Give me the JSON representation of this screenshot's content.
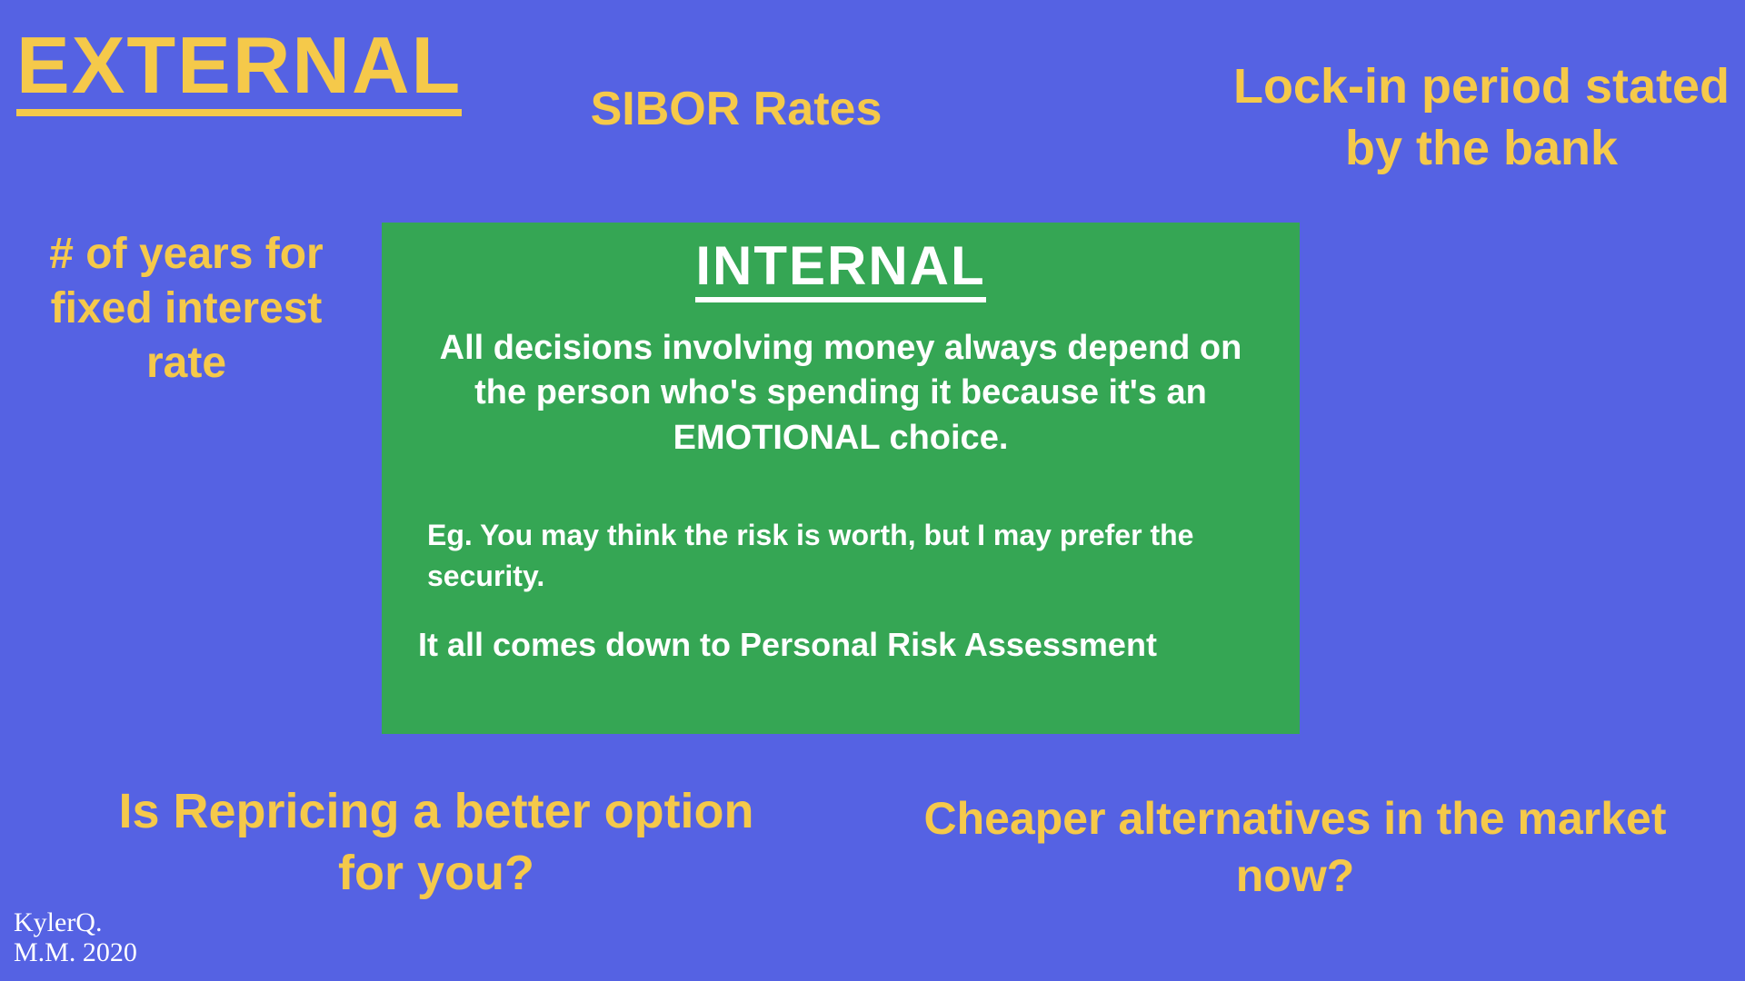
{
  "colors": {
    "background": "#5562e3",
    "accent": "#f5c94a",
    "box_bg": "#35a654",
    "box_text": "#ffffff",
    "signature": "#ffffff"
  },
  "external": {
    "title": "EXTERNAL",
    "title_fontsize": 88,
    "factors": {
      "sibor": "SIBOR Rates",
      "lockin": "Lock-in period stated by the bank",
      "years": "# of years for fixed interest rate",
      "repricing": "Is Repricing a better option for you?",
      "cheaper": "Cheaper alternatives in the market now?"
    }
  },
  "internal": {
    "title": "INTERNAL",
    "title_fontsize": 60,
    "body": "All decisions involving money always depend on the person who's spending it because it's an EMOTIONAL choice.",
    "body_fontsize": 38,
    "example": "Eg. You may think the risk is worth, but I may prefer the security.",
    "example_fontsize": 32,
    "conclusion": "It all comes down to Personal Risk Assessment",
    "conclusion_fontsize": 36
  },
  "signature": {
    "line1": "KylerQ.",
    "line2": "M.M. 2020",
    "fontsize": 30
  }
}
